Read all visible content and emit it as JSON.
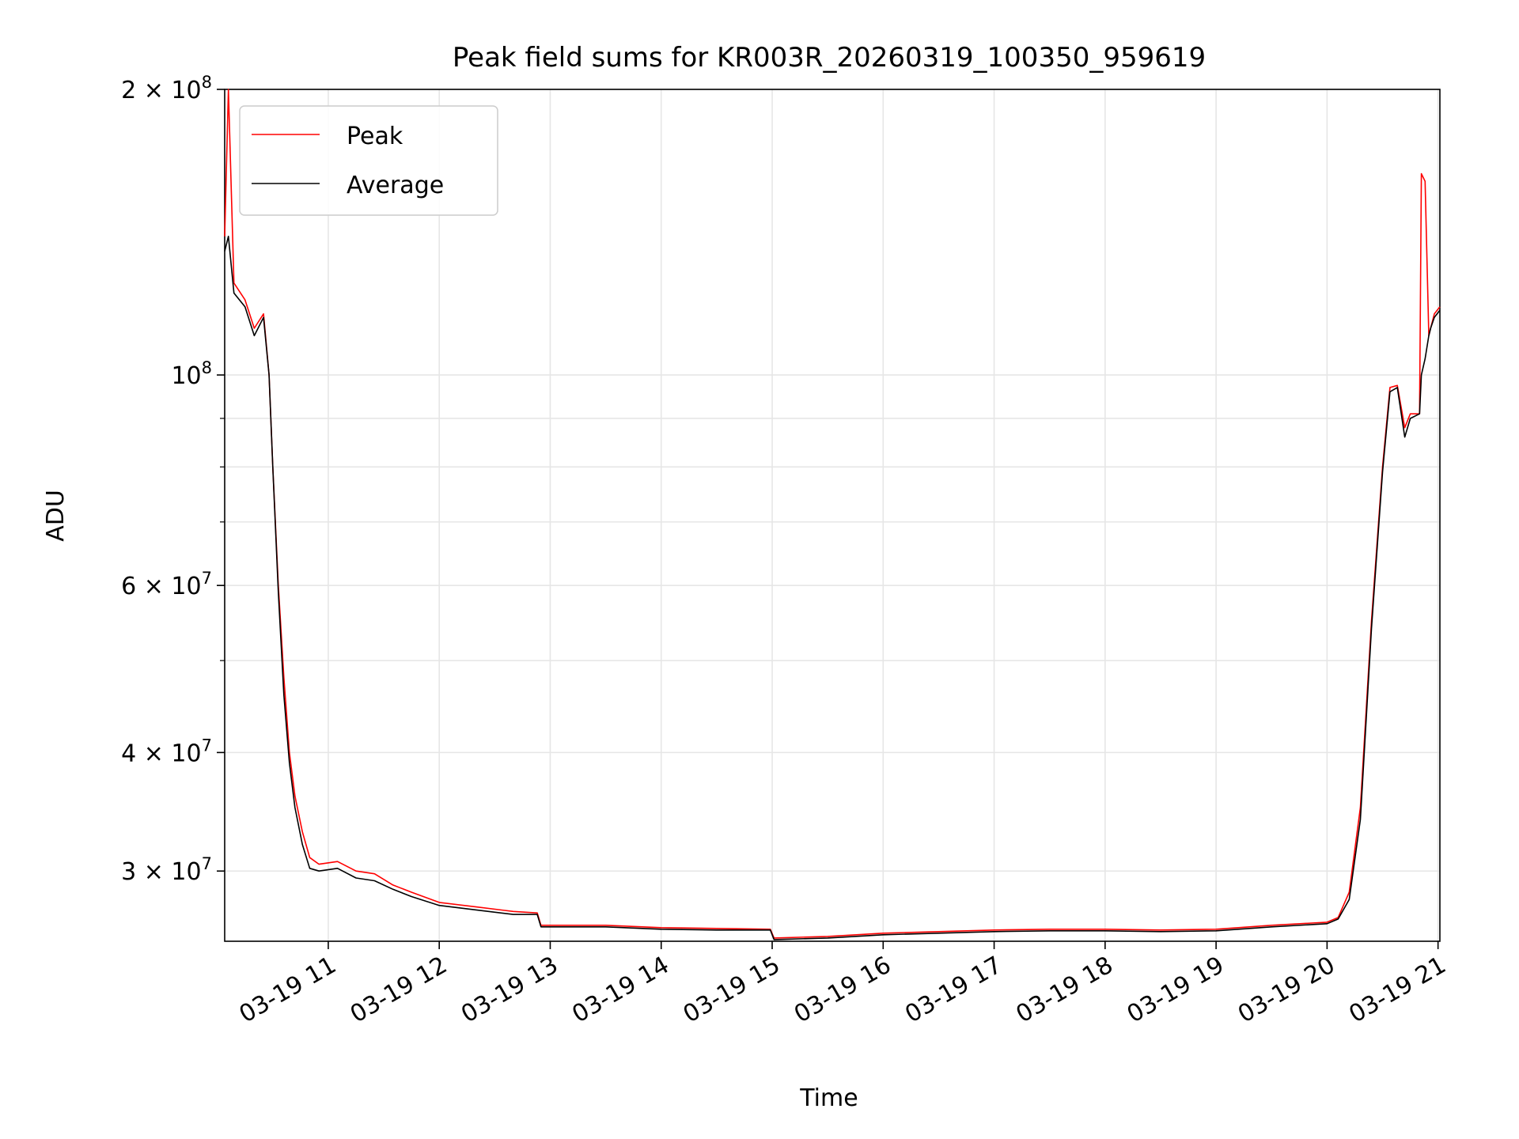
{
  "chart_data": {
    "type": "line",
    "title": "Peak field sums for KR003R_20260319_100350_959619",
    "xlabel": "Time",
    "ylabel": "ADU",
    "yscale": "log",
    "ylim": [
      25300000,
      200000000
    ],
    "xlim": [
      "2026-03-19 10:04",
      "2026-03-19 21:01"
    ],
    "grid": true,
    "legend": "top-left",
    "x_ticks": [
      {
        "value": "2026-03-19 11:00",
        "label": "03-19 11"
      },
      {
        "value": "2026-03-19 12:00",
        "label": "03-19 12"
      },
      {
        "value": "2026-03-19 13:00",
        "label": "03-19 13"
      },
      {
        "value": "2026-03-19 14:00",
        "label": "03-19 14"
      },
      {
        "value": "2026-03-19 15:00",
        "label": "03-19 15"
      },
      {
        "value": "2026-03-19 16:00",
        "label": "03-19 16"
      },
      {
        "value": "2026-03-19 17:00",
        "label": "03-19 17"
      },
      {
        "value": "2026-03-19 18:00",
        "label": "03-19 18"
      },
      {
        "value": "2026-03-19 19:00",
        "label": "03-19 19"
      },
      {
        "value": "2026-03-19 20:00",
        "label": "03-19 20"
      },
      {
        "value": "2026-03-19 21:00",
        "label": "03-19 21"
      }
    ],
    "y_ticks": [
      {
        "value": 30000000,
        "mant": "3",
        "exp": "7"
      },
      {
        "value": 40000000,
        "mant": "4",
        "exp": "7"
      },
      {
        "value": 60000000,
        "mant": "6",
        "exp": "7"
      },
      {
        "value": 100000000,
        "mant": "",
        "exp": "8"
      },
      {
        "value": 200000000,
        "mant": "2",
        "exp": "8"
      }
    ],
    "y_minor_ticks": [
      50000000,
      70000000,
      80000000,
      90000000
    ],
    "series": [
      {
        "name": "Peak",
        "color": "#ff0000",
        "x": [
          "2026-03-19 10:04",
          "2026-03-19 10:06",
          "2026-03-19 10:09",
          "2026-03-19 10:15",
          "2026-03-19 10:20",
          "2026-03-19 10:25",
          "2026-03-19 10:28",
          "2026-03-19 10:30",
          "2026-03-19 10:33",
          "2026-03-19 10:36",
          "2026-03-19 10:39",
          "2026-03-19 10:42",
          "2026-03-19 10:46",
          "2026-03-19 10:50",
          "2026-03-19 10:55",
          "2026-03-19 11:05",
          "2026-03-19 11:15",
          "2026-03-19 11:25",
          "2026-03-19 11:35",
          "2026-03-19 11:45",
          "2026-03-19 12:00",
          "2026-03-19 12:20",
          "2026-03-19 12:40",
          "2026-03-19 12:53",
          "2026-03-19 12:55",
          "2026-03-19 13:30",
          "2026-03-19 14:00",
          "2026-03-19 14:30",
          "2026-03-19 14:59",
          "2026-03-19 15:01",
          "2026-03-19 15:30",
          "2026-03-19 16:00",
          "2026-03-19 16:30",
          "2026-03-19 17:00",
          "2026-03-19 17:30",
          "2026-03-19 18:00",
          "2026-03-19 18:30",
          "2026-03-19 19:00",
          "2026-03-19 19:30",
          "2026-03-19 20:00",
          "2026-03-19 20:06",
          "2026-03-19 20:12",
          "2026-03-19 20:18",
          "2026-03-19 20:24",
          "2026-03-19 20:30",
          "2026-03-19 20:34",
          "2026-03-19 20:38",
          "2026-03-19 20:42",
          "2026-03-19 20:45",
          "2026-03-19 20:50",
          "2026-03-19 20:51",
          "2026-03-19 20:53",
          "2026-03-19 20:55",
          "2026-03-19 20:56",
          "2026-03-19 20:58",
          "2026-03-19 21:01"
        ],
        "y": [
          140000000,
          200000000,
          125000000,
          120000000,
          112000000,
          116000000,
          100000000,
          80000000,
          60000000,
          48000000,
          40000000,
          36000000,
          33000000,
          31000000,
          30500000,
          30700000,
          30000000,
          29800000,
          29000000,
          28500000,
          27800000,
          27500000,
          27200000,
          27100000,
          26300000,
          26300000,
          26150000,
          26100000,
          26050000,
          25500000,
          25600000,
          25800000,
          25900000,
          26000000,
          26050000,
          26050000,
          26000000,
          26050000,
          26300000,
          26500000,
          26800000,
          28500000,
          35000000,
          55000000,
          80000000,
          97000000,
          97500000,
          88000000,
          91000000,
          91000000,
          163000000,
          160000000,
          110000000,
          112000000,
          116000000,
          118000000
        ]
      },
      {
        "name": "Average",
        "color": "#000000",
        "x": [
          "2026-03-19 10:04",
          "2026-03-19 10:06",
          "2026-03-19 10:09",
          "2026-03-19 10:15",
          "2026-03-19 10:20",
          "2026-03-19 10:25",
          "2026-03-19 10:28",
          "2026-03-19 10:30",
          "2026-03-19 10:33",
          "2026-03-19 10:36",
          "2026-03-19 10:39",
          "2026-03-19 10:42",
          "2026-03-19 10:46",
          "2026-03-19 10:50",
          "2026-03-19 10:55",
          "2026-03-19 11:05",
          "2026-03-19 11:15",
          "2026-03-19 11:25",
          "2026-03-19 11:35",
          "2026-03-19 11:45",
          "2026-03-19 12:00",
          "2026-03-19 12:20",
          "2026-03-19 12:40",
          "2026-03-19 12:53",
          "2026-03-19 12:55",
          "2026-03-19 13:30",
          "2026-03-19 14:00",
          "2026-03-19 14:30",
          "2026-03-19 14:59",
          "2026-03-19 15:01",
          "2026-03-19 15:30",
          "2026-03-19 16:00",
          "2026-03-19 16:30",
          "2026-03-19 17:00",
          "2026-03-19 17:30",
          "2026-03-19 18:00",
          "2026-03-19 18:30",
          "2026-03-19 19:00",
          "2026-03-19 19:30",
          "2026-03-19 20:00",
          "2026-03-19 20:06",
          "2026-03-19 20:12",
          "2026-03-19 20:18",
          "2026-03-19 20:24",
          "2026-03-19 20:30",
          "2026-03-19 20:34",
          "2026-03-19 20:38",
          "2026-03-19 20:42",
          "2026-03-19 20:45",
          "2026-03-19 20:50",
          "2026-03-19 20:51",
          "2026-03-19 20:53",
          "2026-03-19 20:55",
          "2026-03-19 20:56",
          "2026-03-19 20:58",
          "2026-03-19 21:01"
        ],
        "y": [
          135000000,
          140000000,
          122000000,
          118000000,
          110000000,
          115000000,
          100000000,
          80000000,
          59000000,
          46000000,
          39000000,
          35000000,
          32000000,
          30200000,
          30000000,
          30200000,
          29500000,
          29300000,
          28700000,
          28200000,
          27600000,
          27300000,
          27000000,
          27000000,
          26200000,
          26200000,
          26050000,
          26000000,
          26000000,
          25400000,
          25500000,
          25700000,
          25800000,
          25900000,
          25950000,
          25950000,
          25900000,
          25950000,
          26200000,
          26400000,
          26700000,
          28000000,
          34000000,
          54000000,
          79000000,
          96000000,
          97000000,
          86000000,
          90000000,
          91000000,
          100000000,
          104000000,
          110000000,
          112000000,
          115000000,
          117000000
        ]
      }
    ]
  }
}
